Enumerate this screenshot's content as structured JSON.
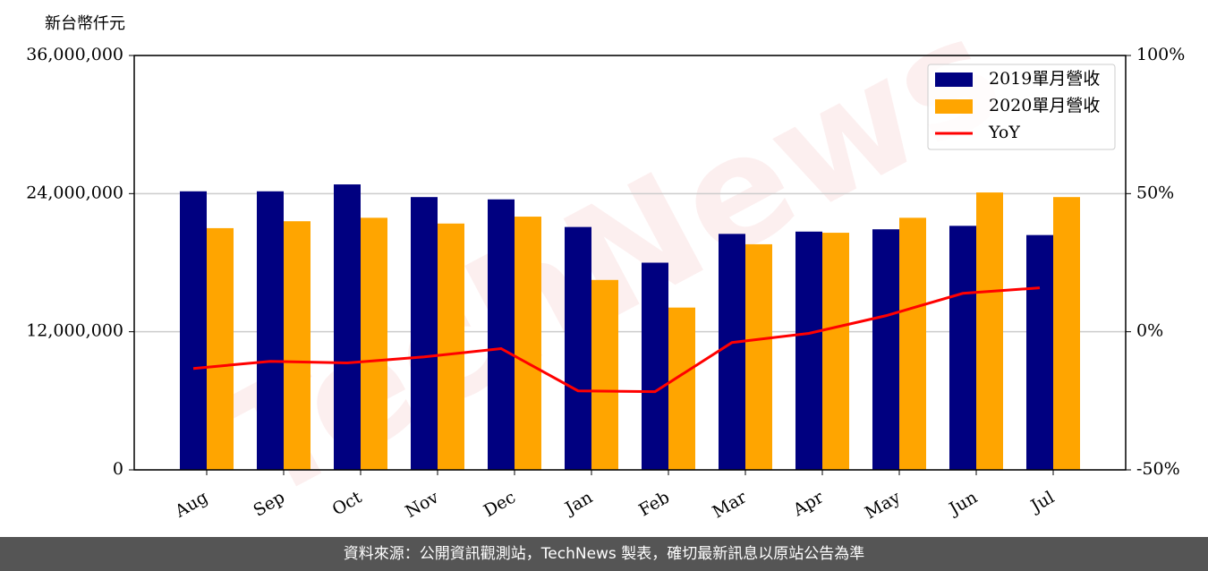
{
  "chart_data": {
    "type": "bar",
    "y_label": "新台幣仟元",
    "watermark": "TechNews",
    "categories": [
      "Aug",
      "Sep",
      "Oct",
      "Nov",
      "Dec",
      "Jan",
      "Feb",
      "Mar",
      "Apr",
      "May",
      "Jun",
      "Jul"
    ],
    "series": [
      {
        "name": "2019單月營收",
        "color": "#000080",
        "values": [
          24200000,
          24200000,
          24800000,
          23700000,
          23500000,
          21100000,
          18000000,
          20500000,
          20700000,
          20900000,
          21200000,
          20400000
        ]
      },
      {
        "name": "2020單月營收",
        "color": "#ffa500",
        "values": [
          21000000,
          21600000,
          21900000,
          21400000,
          22000000,
          16500000,
          14100000,
          19600000,
          20600000,
          21900000,
          24100000,
          23700000
        ]
      },
      {
        "name": "YoY",
        "type": "line",
        "axis": "y2",
        "color": "#ff0000",
        "values": [
          -13.3,
          -10.7,
          -11.3,
          -9.1,
          -6.1,
          -21.4,
          -21.7,
          -3.9,
          -0.6,
          5.8,
          13.9,
          15.9
        ]
      }
    ],
    "ylim": [
      0,
      36000000
    ],
    "yticks": [
      0,
      {
        "value": 12000000,
        "label": "12,000,000"
      },
      {
        "value": 24000000,
        "label": "24,000,000"
      },
      {
        "value": 36000000,
        "label": "36,000,000"
      }
    ],
    "y2lim": [
      -50,
      100
    ],
    "y2ticks": [
      {
        "value": -50,
        "label": "-50%"
      },
      {
        "value": 0,
        "label": "0%"
      },
      {
        "value": 50,
        "label": "50%"
      },
      {
        "value": 100,
        "label": "100%"
      }
    ],
    "grid": true,
    "legend": "upper right",
    "footer": "資料來源：公開資訊觀測站，TechNews 製表，確切最新訊息以原站公告為準"
  }
}
